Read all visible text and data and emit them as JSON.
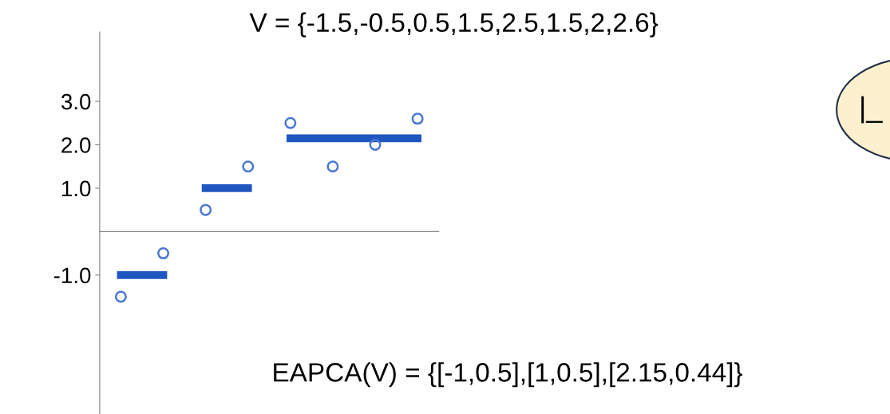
{
  "chart_data": {
    "type": "scatter",
    "title": "V = {-1.5,-0.5,0.5,1.5,2.5,1.5,2,2.6}",
    "categories": [
      null,
      null,
      null,
      null,
      null,
      null,
      null,
      null
    ],
    "series": [
      {
        "type": "scatter",
        "color": "#4a78d0",
        "values": [
          -1.5,
          -0.5,
          0.5,
          1.5,
          2.5,
          1.5,
          2,
          2.6
        ],
        "marker": "circle"
      },
      {
        "type": "line",
        "color": "#1f56c0",
        "values": [
          -1,
          -1,
          null,
          null,
          null,
          null,
          null,
          null
        ]
      },
      {
        "type": "line",
        "color": "#1f56c0",
        "values": [
          null,
          null,
          1,
          1,
          null,
          null,
          null,
          null
        ]
      },
      {
        "type": "line",
        "color": "#1f56c0",
        "values": [
          null,
          null,
          null,
          null,
          2.15,
          2.15,
          2.15,
          2.15
        ]
      }
    ],
    "ylim": [
      -4.2,
      4.6
    ],
    "yticks": [
      {
        "value": 3,
        "label": "3.0"
      },
      {
        "value": 2,
        "label": "2.0"
      },
      {
        "value": 1,
        "label": "1.0"
      },
      {
        "value": -1,
        "label": "-1.0"
      }
    ],
    "tick_labels": "y",
    "grid": false,
    "legend": false,
    "annotations": [
      "EAPCA(V) = {[-1,0.5],[1,0.5],[2.15,0.44]}",
      "|_"
    ]
  }
}
